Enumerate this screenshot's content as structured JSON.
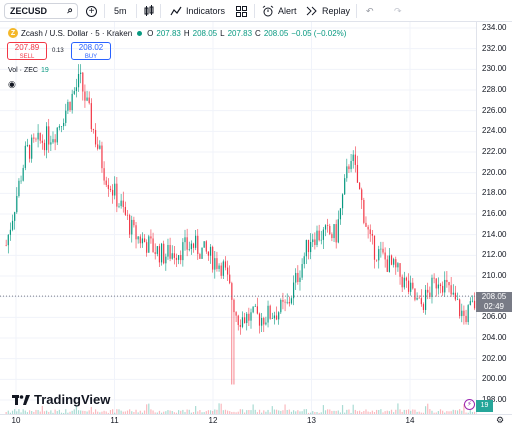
{
  "toolbar": {
    "symbol": "ZECUSD",
    "interval": "5m",
    "indicators_label": "Indicators",
    "alert_label": "Alert",
    "replay_label": "Replay"
  },
  "legend": {
    "title": "Zcash / U.S. Dollar · 5 · Kraken",
    "open_label": "O",
    "open": "207.83",
    "high_label": "H",
    "high": "208.05",
    "low_label": "L",
    "low": "207.83",
    "close_label": "C",
    "close": "208.05",
    "change": "−0.05 (−0.02%)"
  },
  "trade": {
    "sell_price": "207.89",
    "sell_label": "SELL",
    "spread": "0.13",
    "buy_price": "208.02",
    "buy_label": "BUY"
  },
  "volume": {
    "label": "Vol · ZEC",
    "value": "19"
  },
  "current_price": {
    "price": "208.05",
    "countdown": "02:49"
  },
  "branding": {
    "logo_text": "TradingView"
  },
  "colors": {
    "up": "#089981",
    "down": "#f23645",
    "grid": "#f0f3fa",
    "axis_text": "#131722",
    "price_label_bg": "#787b86"
  },
  "chart_data": {
    "type": "candlestick",
    "y_ticks": [
      "234.00",
      "232.00",
      "230.00",
      "228.00",
      "226.00",
      "224.00",
      "222.00",
      "220.00",
      "218.00",
      "216.00",
      "214.00",
      "212.00",
      "210.00",
      "208.00",
      "206.00",
      "204.00",
      "202.00",
      "200.00",
      "198.00"
    ],
    "x_ticks": [
      "10",
      "11",
      "12",
      "13",
      "14"
    ],
    "ylim": [
      197,
      235
    ],
    "close_path_anchors": [
      [
        9.9,
        213
      ],
      [
        10.1,
        222
      ],
      [
        10.4,
        224
      ],
      [
        10.65,
        229
      ],
      [
        10.9,
        220
      ],
      [
        11.2,
        214
      ],
      [
        11.5,
        212
      ],
      [
        11.8,
        213
      ],
      [
        12.1,
        211
      ],
      [
        12.25,
        206
      ],
      [
        12.5,
        206
      ],
      [
        12.75,
        207
      ],
      [
        13.0,
        214
      ],
      [
        13.25,
        214
      ],
      [
        13.4,
        222
      ],
      [
        13.6,
        213
      ],
      [
        13.9,
        210
      ],
      [
        14.1,
        207
      ],
      [
        14.3,
        210
      ],
      [
        14.55,
        206
      ],
      [
        14.8,
        209
      ],
      [
        14.85,
        208
      ]
    ],
    "notable_extremes": {
      "high": 230.5,
      "low": 199.5
    },
    "current_price": 208.05
  }
}
